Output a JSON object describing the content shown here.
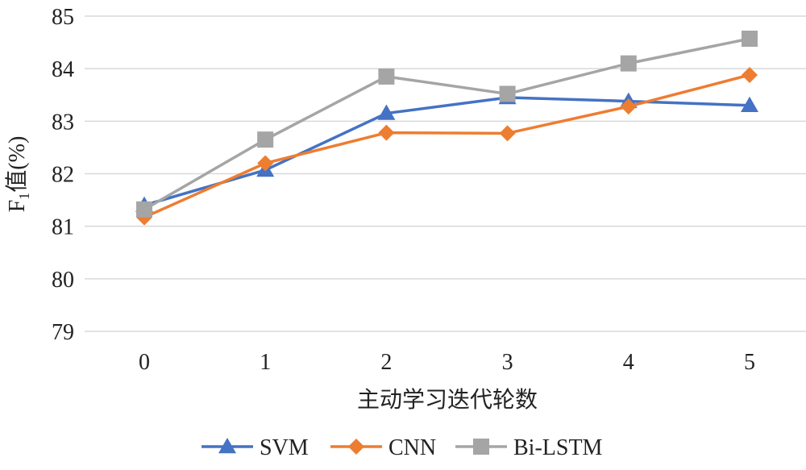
{
  "chart_data": {
    "type": "line",
    "title": "",
    "xlabel": "主动学习迭代轮数",
    "ylabel": {
      "main": "F",
      "sub": "1",
      "suffix": "值(%)"
    },
    "categories": [
      "0",
      "1",
      "2",
      "3",
      "4",
      "5"
    ],
    "ylim": [
      79,
      85
    ],
    "yticks": [
      "79",
      "80",
      "81",
      "82",
      "83",
      "84",
      "85"
    ],
    "grid": "horizontal",
    "legend_position": "bottom",
    "series": [
      {
        "name": "SVM",
        "color": "#4472C4",
        "marker": "triangle",
        "values": [
          81.4,
          82.07,
          83.15,
          83.45,
          83.38,
          83.3
        ]
      },
      {
        "name": "CNN",
        "color": "#ED7D31",
        "marker": "diamond",
        "values": [
          81.17,
          82.2,
          82.78,
          82.77,
          83.28,
          83.88
        ]
      },
      {
        "name": "Bi-LSTM",
        "color": "#A5A5A5",
        "marker": "square",
        "values": [
          81.32,
          82.65,
          83.85,
          83.52,
          84.1,
          84.57
        ]
      }
    ]
  }
}
